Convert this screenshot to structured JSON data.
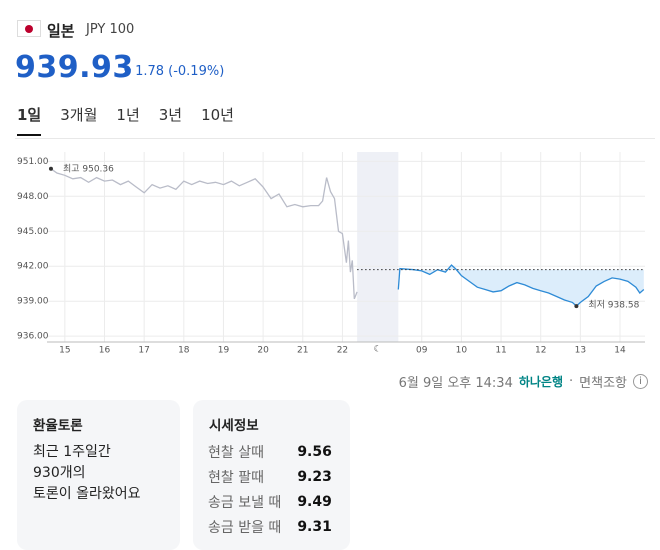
{
  "header": {
    "country": "일본",
    "currency": "JPY 100"
  },
  "price": {
    "value": 939.93,
    "change": "1.78 (-0.19%)"
  },
  "tabs": [
    "1일",
    "3개월",
    "1년",
    "3년",
    "10년"
  ],
  "chart_data": {
    "type": "line",
    "ylim": [
      935.5,
      951.8
    ],
    "yticks": [
      {
        "value": 951,
        "label": "951.00"
      },
      {
        "value": 948,
        "label": "948.00"
      },
      {
        "value": 945,
        "label": "945.00"
      },
      {
        "value": 942,
        "label": "942.00"
      },
      {
        "value": 939,
        "label": "939.00"
      },
      {
        "value": 936,
        "label": "936.00"
      }
    ],
    "xlim": [
      -0.45,
      14.63
    ],
    "xticks": [
      {
        "value": 0,
        "label": "15"
      },
      {
        "value": 1,
        "label": "16"
      },
      {
        "value": 2,
        "label": "17"
      },
      {
        "value": 3,
        "label": "18"
      },
      {
        "value": 4,
        "label": "19"
      },
      {
        "value": 5,
        "label": "20"
      },
      {
        "value": 6,
        "label": "21"
      },
      {
        "value": 7,
        "label": "22"
      },
      {
        "value": 9,
        "label": "09"
      },
      {
        "value": 10,
        "label": "10"
      },
      {
        "value": 11,
        "label": "11"
      },
      {
        "value": 12,
        "label": "12"
      },
      {
        "value": 13,
        "label": "13"
      },
      {
        "value": 14,
        "label": "14"
      }
    ],
    "closed_band": [
      7.37,
      8.41
    ],
    "reference_line": 941.71,
    "grid": true,
    "series": [
      {
        "color": "#b9bcc8",
        "x": [
          -0.35,
          -0.2,
          0,
          0.2,
          0.4,
          0.6,
          0.8,
          1.0,
          1.2,
          1.4,
          1.6,
          1.8,
          2.0,
          2.2,
          2.4,
          2.6,
          2.8,
          3.0,
          3.2,
          3.4,
          3.6,
          3.8,
          4.0,
          4.2,
          4.4,
          4.6,
          4.8,
          5.0,
          5.2,
          5.4,
          5.6,
          5.8,
          6.0,
          6.2,
          6.4,
          6.5,
          6.6,
          6.7,
          6.8,
          6.9,
          7.0,
          7.1,
          7.15,
          7.2,
          7.25,
          7.3,
          7.37
        ],
        "values": [
          950.36,
          950.0,
          949.8,
          949.5,
          949.6,
          949.2,
          949.6,
          949.3,
          949.4,
          949.0,
          949.3,
          948.8,
          948.3,
          949.0,
          948.7,
          948.9,
          948.6,
          949.3,
          949.0,
          949.3,
          949.1,
          949.2,
          949.0,
          949.3,
          948.9,
          949.2,
          949.5,
          948.8,
          947.8,
          948.2,
          947.1,
          947.3,
          947.1,
          947.2,
          947.2,
          947.6,
          949.6,
          948.4,
          947.8,
          945.0,
          944.8,
          942.3,
          944.2,
          941.5,
          942.5,
          939.2,
          939.8
        ]
      },
      {
        "color": "#2e8bd6",
        "fill": "#dcedfb",
        "x": [
          8.41,
          8.45,
          8.8,
          9.0,
          9.2,
          9.4,
          9.6,
          9.75,
          9.85,
          10.0,
          10.2,
          10.4,
          10.6,
          10.8,
          11.0,
          11.2,
          11.4,
          11.6,
          11.8,
          12.0,
          12.2,
          12.4,
          12.6,
          12.8,
          12.9,
          13.0,
          13.2,
          13.4,
          13.6,
          13.8,
          14.0,
          14.2,
          14.4,
          14.5,
          14.6
        ],
        "values": [
          940.0,
          941.8,
          941.7,
          941.6,
          941.3,
          941.7,
          941.5,
          942.1,
          941.8,
          941.2,
          940.7,
          940.2,
          940.0,
          939.8,
          939.9,
          940.3,
          940.6,
          940.4,
          940.1,
          939.9,
          939.7,
          939.4,
          939.1,
          938.9,
          938.58,
          938.9,
          939.4,
          940.3,
          940.7,
          941.0,
          940.9,
          940.7,
          940.2,
          939.7,
          940.0
        ]
      }
    ],
    "annotations": [
      "최고 950.36",
      "최저 938.58"
    ]
  },
  "footer": {
    "timestamp": "6월 9일 오후 14:34",
    "bank": "하나은행",
    "disclaimer": "면책조항"
  },
  "discussion": {
    "title": "환율토론",
    "lines": [
      "최근 1주일간",
      "930개의",
      "토론이 올라왔어요"
    ]
  },
  "quotes": {
    "title": "시세정보",
    "rows": [
      [
        "현찰 살때",
        9.56
      ],
      [
        "현찰 팔때",
        9.23
      ],
      [
        "송금 보낼 때",
        9.49
      ],
      [
        "송금 받을 때",
        9.31
      ]
    ]
  }
}
